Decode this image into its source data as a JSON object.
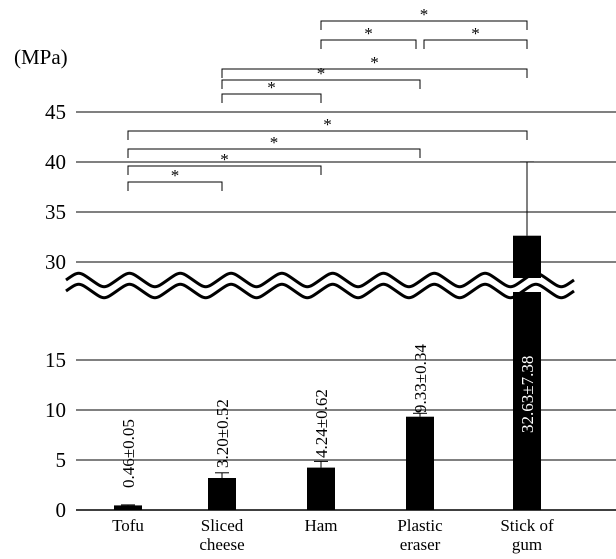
{
  "chart_data": {
    "type": "bar",
    "ylabel": "(MPa)",
    "broken_axis": true,
    "lower_ylim": [
      0,
      20
    ],
    "upper_ylim": [
      28,
      48
    ],
    "lower_ticks": [
      0,
      5,
      10,
      15
    ],
    "upper_ticks": [
      30,
      35,
      40,
      45
    ],
    "grid": true,
    "categories": [
      "Tofu",
      "Sliced cheese",
      "Ham",
      "Plastic eraser",
      "Stick of gum"
    ],
    "category_labels": [
      [
        "Tofu"
      ],
      [
        "Sliced",
        "cheese"
      ],
      [
        "Ham"
      ],
      [
        "Plastic",
        "eraser"
      ],
      [
        "Stick of",
        "gum"
      ]
    ],
    "values": [
      0.46,
      3.2,
      4.24,
      9.33,
      32.63
    ],
    "errors": [
      0.05,
      0.52,
      0.62,
      0.34,
      7.38
    ],
    "data_labels": [
      "0.46±0.05",
      "3.20±0.52",
      "4.24±0.62",
      "9.33±0.34",
      "32.63±7.38"
    ],
    "bar_color": "#000000",
    "significance": [
      {
        "from": 0,
        "to": 1,
        "label": "*"
      },
      {
        "from": 0,
        "to": 2,
        "label": "*"
      },
      {
        "from": 0,
        "to": 3,
        "label": "*"
      },
      {
        "from": 0,
        "to": 4,
        "label": "*"
      },
      {
        "from": 1,
        "to": 2,
        "label": "*"
      },
      {
        "from": 1,
        "to": 3,
        "label": "*"
      },
      {
        "from": 1,
        "to": 4,
        "label": "*"
      },
      {
        "from": 2,
        "to": 3,
        "label": "*"
      },
      {
        "from": 3,
        "to": 4,
        "label": "*"
      },
      {
        "from": 2,
        "to": 4,
        "label": "*"
      }
    ]
  }
}
